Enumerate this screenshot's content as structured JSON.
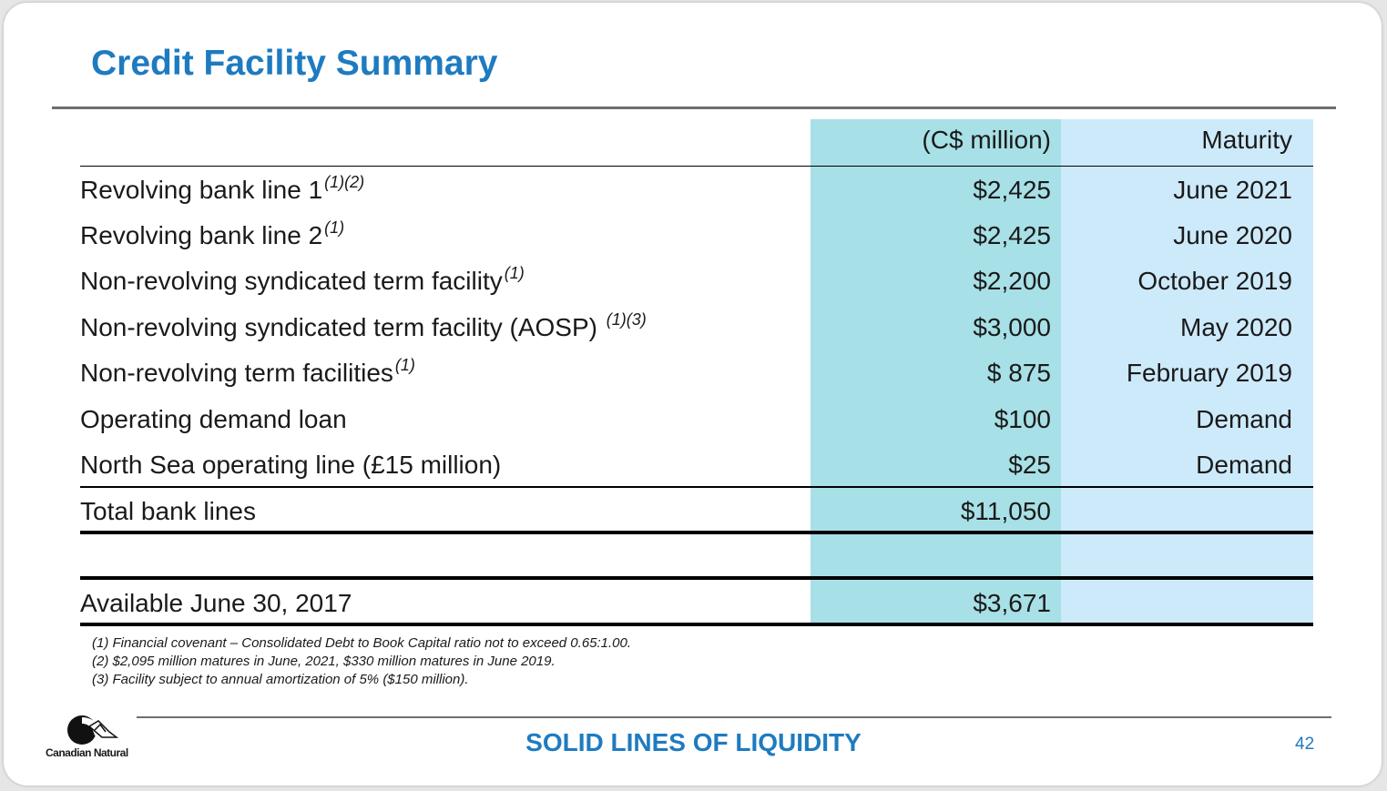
{
  "slide": {
    "title": "Credit Facility Summary",
    "footer_text": "SOLID LINES OF LIQUIDITY",
    "page_number": "42",
    "logo_text": "Canadian Natural"
  },
  "table": {
    "headers": {
      "amount": "(C$ million)",
      "maturity": "Maturity"
    },
    "rows": [
      {
        "label": "Revolving bank line 1",
        "note": "(1)(2)",
        "amount": "$2,425",
        "maturity": "June 2021"
      },
      {
        "label": "Revolving bank line 2",
        "note": "(1)",
        "amount": "$2,425",
        "maturity": "June 2020"
      },
      {
        "label": "Non-revolving syndicated term facility",
        "note": "(1)",
        "amount": "$2,200",
        "maturity": "October 2019"
      },
      {
        "label": "Non-revolving syndicated term facility (AOSP) ",
        "note": "(1)(3)",
        "amount": "$3,000",
        "maturity": "May 2020"
      },
      {
        "label": "Non-revolving term facilities",
        "note": "(1)",
        "amount": "$ 875",
        "maturity": "February 2019"
      },
      {
        "label": "Operating demand loan",
        "note": "",
        "amount": "$100",
        "maturity": "Demand"
      },
      {
        "label": "North Sea operating line (£15 million)",
        "note": "",
        "amount": "$25",
        "maturity": "Demand"
      }
    ],
    "total": {
      "label": "Total bank lines",
      "amount": "$11,050"
    },
    "available": {
      "label": "Available June 30, 2017",
      "amount": "$3,671"
    }
  },
  "footnotes": [
    "(1) Financial covenant – Consolidated Debt to Book Capital ratio not to exceed 0.65:1.00.",
    "(2) $2,095 million matures in June, 2021, $330 million matures in June 2019.",
    "(3) Facility subject to annual amortization of 5% ($150 million)."
  ],
  "colors": {
    "title_blue": "#1e7bc0",
    "amount_column": "#a7e0e6",
    "maturity_column": "#cdeafb"
  }
}
